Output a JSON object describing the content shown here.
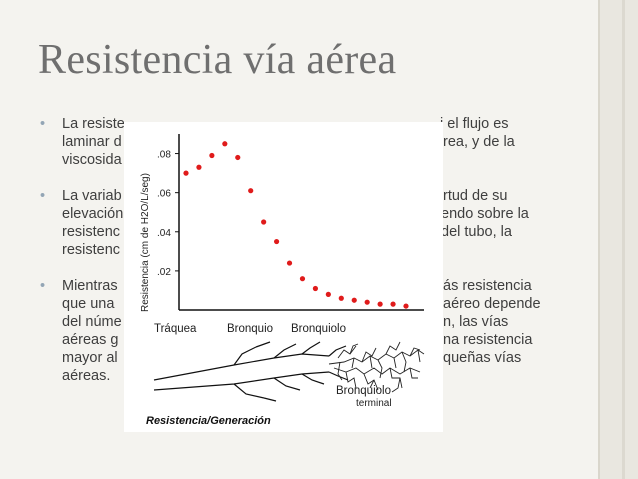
{
  "slide": {
    "title": "Resistencia vía aérea",
    "bullets": [
      {
        "line1": "La resiste",
        "line1b": "i el flujo es",
        "line2": "laminar d",
        "line2b": "rea, y de la",
        "line3": "viscosida"
      },
      {
        "line1": "La variab",
        "line1b": "rtud de su",
        "line2": "elevación",
        "line2b": "endo sobre la",
        "line3": "resistenc",
        "line3b": "del tubo, la",
        "line4": "resistenc"
      },
      {
        "line1": "Mientras",
        "line1b": "ás resistencia",
        "line2": "que una",
        "line2b": "aéreo depende",
        "line3": "del núme",
        "line3b": "n, las vías",
        "line4": "aéreas g",
        "line4b": "na resistencia",
        "line5": "mayor al",
        "line5b": "queñas vías",
        "line6": "aéreas."
      }
    ],
    "bullet_marker": "•"
  },
  "figure": {
    "ylabel": "Resistencia (cm de H2O/L/seg)",
    "yticks": [
      ".08",
      ".06",
      ".04",
      ".02"
    ],
    "x_region_labels": [
      "Tráquea",
      "Bronquio",
      "Bronquiolo"
    ],
    "terminal_label_1": "Bronquiolo",
    "terminal_label_2": "terminal",
    "footer_label": "Resistencia/Generación"
  },
  "chart_data": {
    "type": "scatter",
    "series": [
      {
        "color": "#e01b1b",
        "values": [
          0.07,
          0.073,
          0.079,
          0.085,
          0.078,
          0.061,
          0.045,
          0.035,
          0.024,
          0.016,
          0.011,
          0.008,
          0.006,
          0.005,
          0.004,
          0.003,
          0.003,
          0.002
        ]
      }
    ],
    "ylim": [
      0,
      0.09
    ],
    "yticks": [
      0.02,
      0.04,
      0.06,
      0.08
    ],
    "ylabel": "Resistencia (cm de H2O/L/seg)",
    "xlabel": "",
    "grid": false
  },
  "colors": {
    "background": "#f4f3ef",
    "title": "#6f6f6f",
    "text": "#3e3e3e",
    "bullet": "#93a5b5",
    "points": "#e01b1b"
  }
}
